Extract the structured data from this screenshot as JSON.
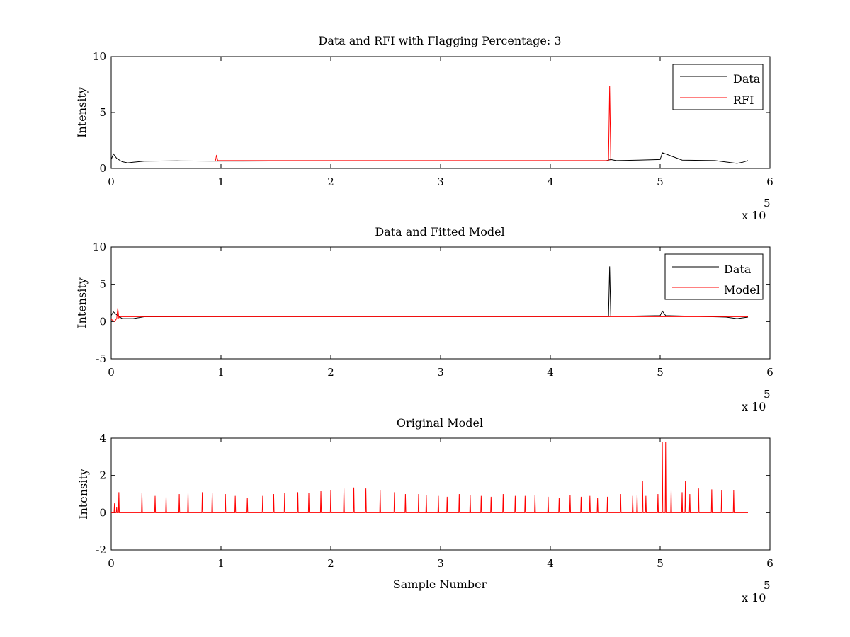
{
  "figure": {
    "background": "#ffffff"
  },
  "colors": {
    "data": "#000000",
    "rfi": "#ff0000",
    "model": "#ff0000",
    "axes": "#000000"
  },
  "chart_data": [
    {
      "type": "line",
      "title": "Data and RFI with Flagging Percentage: 3",
      "xlabel": "",
      "ylabel": "Intensity",
      "xlim": [
        0,
        600000
      ],
      "ylim": [
        0,
        10
      ],
      "xticks": [
        "0",
        "1",
        "2",
        "3",
        "4",
        "5",
        "6"
      ],
      "yticks": [
        "0",
        "5",
        "10"
      ],
      "xscale_label": "x 10",
      "xscale_exp": "5",
      "legend": {
        "placement": "top-right",
        "entries": [
          "Data",
          "RFI"
        ]
      },
      "series": [
        {
          "name": "Data",
          "color": "#000000",
          "kind": "data",
          "x": [
            0,
            2000,
            5000,
            10000,
            15000,
            20000,
            30000,
            60000,
            90000,
            120000,
            200000,
            300000,
            400000,
            450000,
            455000,
            460000,
            480000,
            500000,
            502000,
            505000,
            520000,
            550000,
            570000,
            575000,
            580000
          ],
          "y": [
            0.8,
            1.3,
            0.9,
            0.6,
            0.5,
            0.55,
            0.65,
            0.68,
            0.66,
            0.66,
            0.67,
            0.67,
            0.67,
            0.67,
            0.8,
            0.7,
            0.75,
            0.8,
            1.4,
            1.3,
            0.75,
            0.7,
            0.45,
            0.55,
            0.7
          ]
        },
        {
          "name": "RFI",
          "color": "#ff0000",
          "kind": "rfi",
          "x": [
            95000,
            96000,
            97000,
            453000,
            454000,
            455000
          ],
          "y": [
            0.7,
            1.2,
            0.7,
            0.7,
            7.4,
            0.7
          ]
        }
      ]
    },
    {
      "type": "line",
      "title": "Data and Fitted Model",
      "xlabel": "",
      "ylabel": "Intensity",
      "xlim": [
        0,
        600000
      ],
      "ylim": [
        -5,
        10
      ],
      "xticks": [
        "0",
        "1",
        "2",
        "3",
        "4",
        "5",
        "6"
      ],
      "yticks": [
        "-5",
        "0",
        "5",
        "10"
      ],
      "xscale_label": "x 10",
      "xscale_exp": "5",
      "legend": {
        "placement": "top-right",
        "entries": [
          "Data",
          "Model"
        ]
      },
      "series": [
        {
          "name": "Data",
          "color": "#000000",
          "kind": "data",
          "x": [
            0,
            2000,
            5000,
            10000,
            20000,
            30000,
            100000,
            200000,
            300000,
            400000,
            453000,
            454000,
            455000,
            500000,
            502000,
            505000,
            560000,
            570000,
            580000
          ],
          "y": [
            0.8,
            1.3,
            0.9,
            0.4,
            0.4,
            0.65,
            0.67,
            0.67,
            0.67,
            0.67,
            0.67,
            7.4,
            0.7,
            0.8,
            1.4,
            0.8,
            0.6,
            0.4,
            0.6
          ]
        },
        {
          "name": "Model",
          "color": "#ff0000",
          "kind": "model",
          "x": [
            0,
            3000,
            5000,
            6000,
            7000,
            8000,
            10000,
            580000
          ],
          "y": [
            0.3,
            0.0,
            0.4,
            1.8,
            0.5,
            0.66,
            0.66,
            0.66
          ]
        }
      ]
    },
    {
      "type": "line",
      "title": "Original Model",
      "xlabel": "Sample Number",
      "ylabel": "Intensity",
      "xlim": [
        0,
        600000
      ],
      "ylim": [
        -2,
        4
      ],
      "xticks": [
        "0",
        "1",
        "2",
        "3",
        "4",
        "5",
        "6"
      ],
      "yticks": [
        "-2",
        "0",
        "2",
        "4"
      ],
      "xscale_label": "x 10",
      "xscale_exp": "5",
      "series": [
        {
          "name": "Model",
          "color": "#ff0000",
          "kind": "spikes",
          "baseline": 0.0,
          "spikes_x": [
            3000,
            5000,
            7000,
            28000,
            40000,
            50000,
            62000,
            70000,
            83000,
            92000,
            104000,
            113000,
            124000,
            138000,
            148000,
            158000,
            170000,
            180000,
            191000,
            200000,
            212000,
            221000,
            232000,
            245000,
            258000,
            268000,
            280000,
            287000,
            298000,
            306000,
            317000,
            327000,
            337000,
            346000,
            357000,
            368000,
            377000,
            386000,
            398000,
            408000,
            418000,
            428000,
            436000,
            443000,
            452000,
            464000,
            475000,
            479000,
            484000,
            487000,
            498000,
            502000,
            505000,
            510000,
            520000,
            523000,
            527000,
            535000,
            547000,
            556000,
            567000
          ],
          "spikes_y": [
            0.5,
            0.3,
            1.1,
            1.05,
            0.9,
            0.85,
            1.0,
            1.05,
            1.1,
            1.05,
            1.0,
            0.9,
            0.8,
            0.9,
            1.0,
            1.05,
            1.1,
            1.05,
            1.15,
            1.2,
            1.3,
            1.35,
            1.3,
            1.2,
            1.1,
            1.0,
            1.0,
            0.95,
            0.9,
            0.85,
            1.0,
            0.95,
            0.9,
            0.85,
            1.0,
            0.9,
            0.9,
            0.95,
            0.85,
            0.8,
            0.95,
            0.85,
            0.9,
            0.8,
            0.85,
            1.0,
            0.9,
            0.95,
            1.7,
            0.9,
            1.0,
            3.8,
            3.8,
            1.2,
            1.1,
            1.7,
            1.0,
            1.3,
            1.25,
            1.2,
            1.2
          ],
          "x_end": 580000
        }
      ]
    }
  ]
}
